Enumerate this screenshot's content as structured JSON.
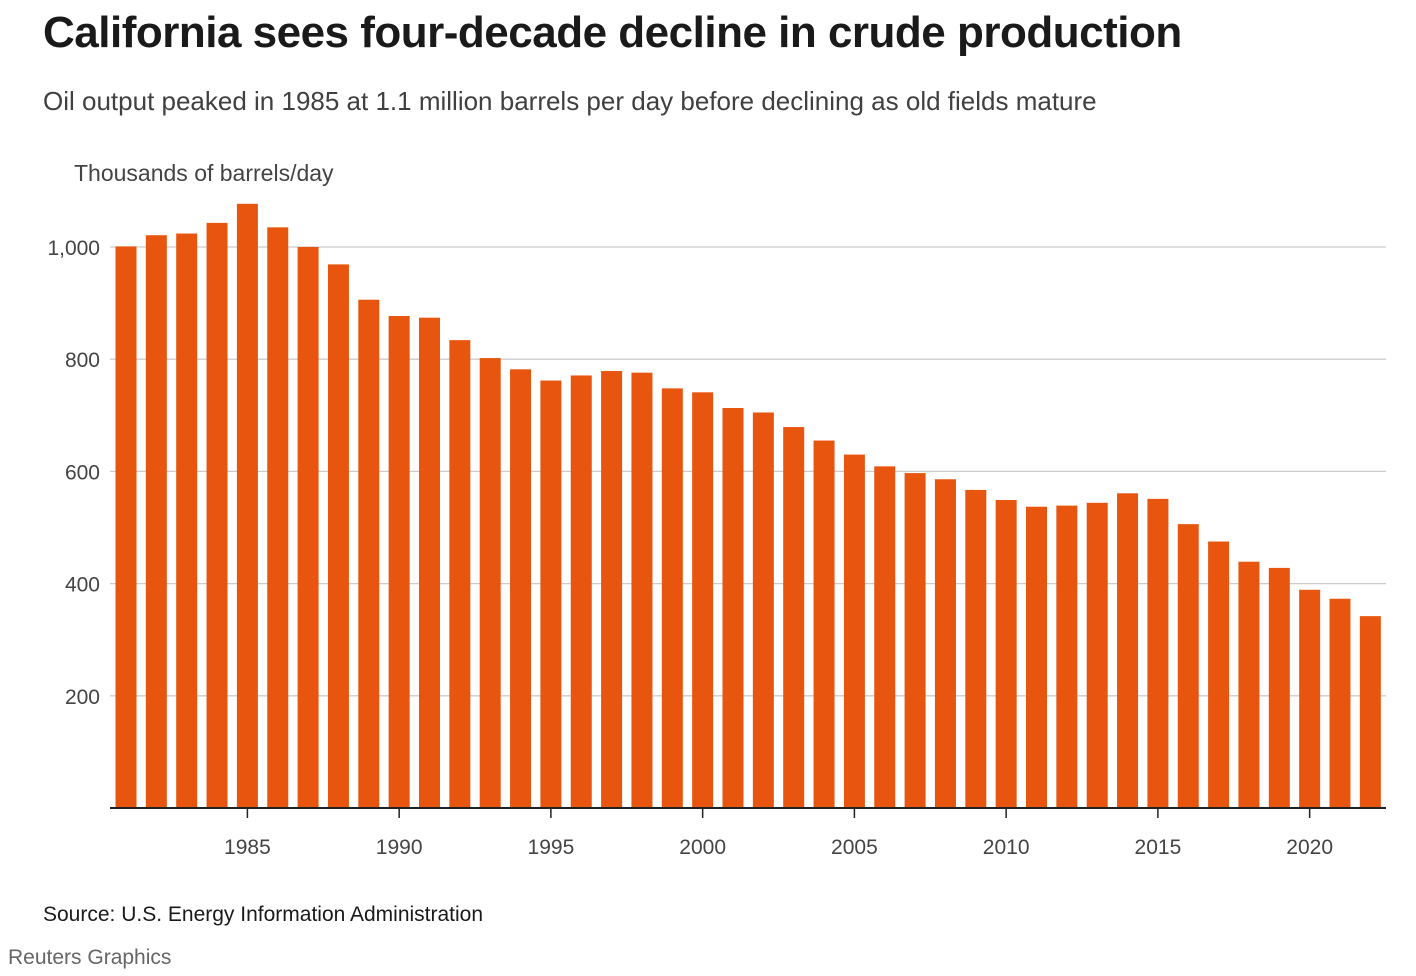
{
  "header": {
    "title": "California sees four-decade decline in crude production",
    "subtitle": "Oil output peaked in 1985 at 1.1 million barrels per day before declining as old fields mature"
  },
  "footer": {
    "source": "Source: U.S. Energy Information Administration",
    "credit": "Reuters Graphics"
  },
  "colors": {
    "bar": "#e8550e",
    "grid": "#cccccc",
    "axis": "#222222"
  },
  "chart_data": {
    "type": "bar",
    "title": "California sees four-decade decline in crude production",
    "ylabel": "Thousands of barrels/day",
    "xlabel": "",
    "ylim": [
      0,
      1100
    ],
    "y_ticks": [
      {
        "value": 200,
        "label": "200"
      },
      {
        "value": 400,
        "label": "400"
      },
      {
        "value": 600,
        "label": "600"
      },
      {
        "value": 800,
        "label": "800"
      },
      {
        "value": 1000,
        "label": "1,000"
      }
    ],
    "x_ticks": [
      {
        "value": 1985,
        "label": "1985"
      },
      {
        "value": 1990,
        "label": "1990"
      },
      {
        "value": 1995,
        "label": "1995"
      },
      {
        "value": 2000,
        "label": "2000"
      },
      {
        "value": 2005,
        "label": "2005"
      },
      {
        "value": 2010,
        "label": "2010"
      },
      {
        "value": 2015,
        "label": "2015"
      },
      {
        "value": 2020,
        "label": "2020"
      }
    ],
    "grid": true,
    "categories": [
      1981,
      1982,
      1983,
      1984,
      1985,
      1986,
      1987,
      1988,
      1989,
      1990,
      1991,
      1992,
      1993,
      1994,
      1995,
      1996,
      1997,
      1998,
      1999,
      2000,
      2001,
      2002,
      2003,
      2004,
      2005,
      2006,
      2007,
      2008,
      2009,
      2010,
      2011,
      2012,
      2013,
      2014,
      2015,
      2016,
      2017,
      2018,
      2019,
      2020,
      2021,
      2022
    ],
    "values": [
      1001,
      1021,
      1024,
      1043,
      1077,
      1035,
      1000,
      969,
      906,
      877,
      874,
      834,
      802,
      782,
      762,
      771,
      779,
      776,
      748,
      741,
      713,
      705,
      679,
      655,
      630,
      609,
      597,
      586,
      567,
      549,
      537,
      539,
      544,
      561,
      551,
      506,
      475,
      439,
      428,
      389,
      373,
      342
    ]
  }
}
